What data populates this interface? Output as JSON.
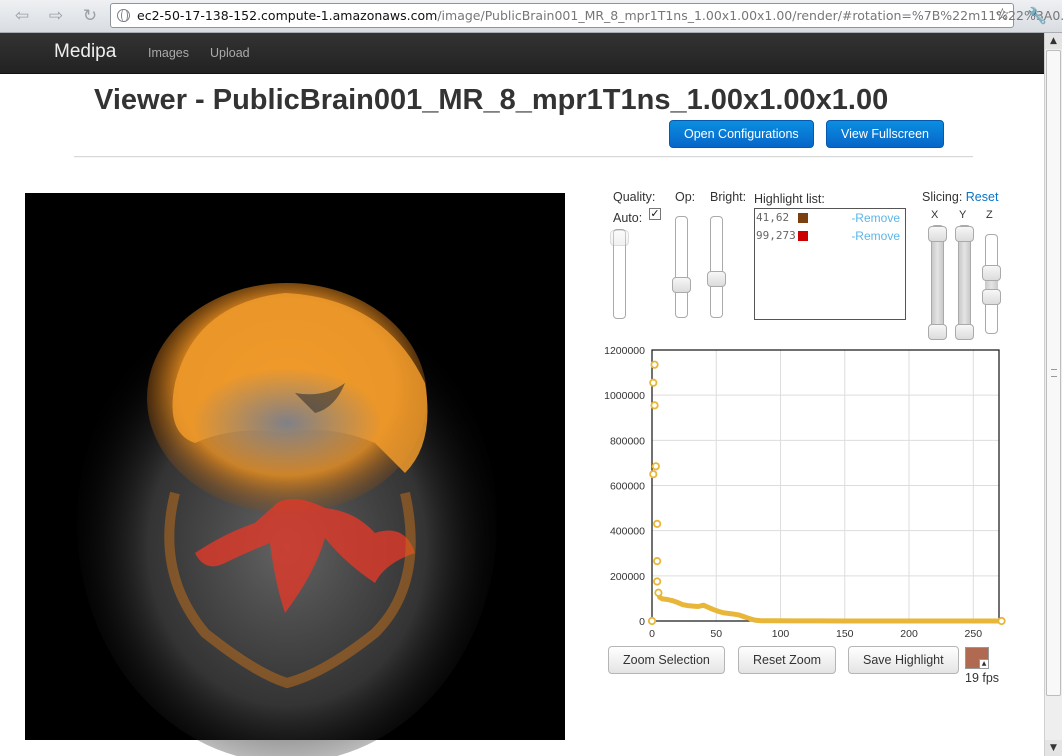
{
  "browser": {
    "url_host": "ec2-50-17-138-152.compute-1.amazonaws.com",
    "url_path": "/image/PublicBrain001_MR_8_mpr1T1ns_1.00x1.00x1.00/render/#rotation=%7B%22m11%22%3A0.",
    "back_icon": "back-arrow-icon",
    "forward_icon": "forward-arrow-icon",
    "reload_icon": "reload-icon",
    "bookmark_icon": "star-icon",
    "menu_icon": "wrench-icon"
  },
  "navbar": {
    "brand": "Medipa",
    "links": [
      "Images",
      "Upload"
    ]
  },
  "page": {
    "title": "Viewer - PublicBrain001_MR_8_mpr1T1ns_1.00x1.00x1.00",
    "buttons": {
      "open_config": "Open Configurations",
      "fullscreen": "View Fullscreen"
    }
  },
  "controls": {
    "quality_label": "Quality:",
    "auto_label": "Auto:",
    "auto_checked": true,
    "op_label": "Op:",
    "bright_label": "Bright:",
    "highlight_label": "Highlight list:",
    "highlights": [
      {
        "value": "41,62",
        "color": "#7b3f10",
        "remove": "-Remove"
      },
      {
        "value": "99,273",
        "color": "#cc0000",
        "remove": "-Remove"
      }
    ],
    "slicing_label": "Slicing:",
    "slicing_reset": "Reset",
    "axes": [
      "X",
      "Y",
      "Z"
    ]
  },
  "chart_data": {
    "type": "scatter",
    "title": "",
    "xlabel": "",
    "ylabel": "",
    "xlim": [
      0,
      270
    ],
    "ylim": [
      0,
      1200000
    ],
    "xticks": [
      "0",
      "50",
      "100",
      "150",
      "200",
      "250"
    ],
    "yticks": [
      "0",
      "200000",
      "400000",
      "600000",
      "800000",
      "1000000",
      "1200000"
    ],
    "grid": true,
    "color": "#e8b73a",
    "points": [
      [
        0,
        0
      ],
      [
        1,
        650000
      ],
      [
        1,
        1055000
      ],
      [
        2,
        1135000
      ],
      [
        2,
        955000
      ],
      [
        3,
        685000
      ],
      [
        4,
        430000
      ],
      [
        4,
        265000
      ],
      [
        4,
        175000
      ],
      [
        5,
        125000
      ],
      [
        6,
        105000
      ],
      [
        8,
        98000
      ],
      [
        12,
        95000
      ],
      [
        16,
        90000
      ],
      [
        20,
        82000
      ],
      [
        24,
        72000
      ],
      [
        28,
        68000
      ],
      [
        32,
        66000
      ],
      [
        36,
        64000
      ],
      [
        40,
        70000
      ],
      [
        44,
        60000
      ],
      [
        48,
        50000
      ],
      [
        52,
        42000
      ],
      [
        56,
        36000
      ],
      [
        60,
        33000
      ],
      [
        64,
        30000
      ],
      [
        68,
        26000
      ],
      [
        72,
        18000
      ],
      [
        76,
        10000
      ],
      [
        80,
        4000
      ],
      [
        85,
        1500
      ],
      [
        95,
        800
      ],
      [
        110,
        500
      ],
      [
        130,
        300
      ],
      [
        150,
        200
      ],
      [
        170,
        150
      ],
      [
        190,
        120
      ],
      [
        210,
        100
      ],
      [
        230,
        80
      ],
      [
        250,
        60
      ],
      [
        265,
        40
      ],
      [
        272,
        0
      ]
    ]
  },
  "chart_buttons": {
    "zoom_selection": "Zoom Selection",
    "reset_zoom": "Reset Zoom",
    "save_highlight": "Save Highlight"
  },
  "status": {
    "fps": "19 fps",
    "picker_color": "#b06a52"
  }
}
